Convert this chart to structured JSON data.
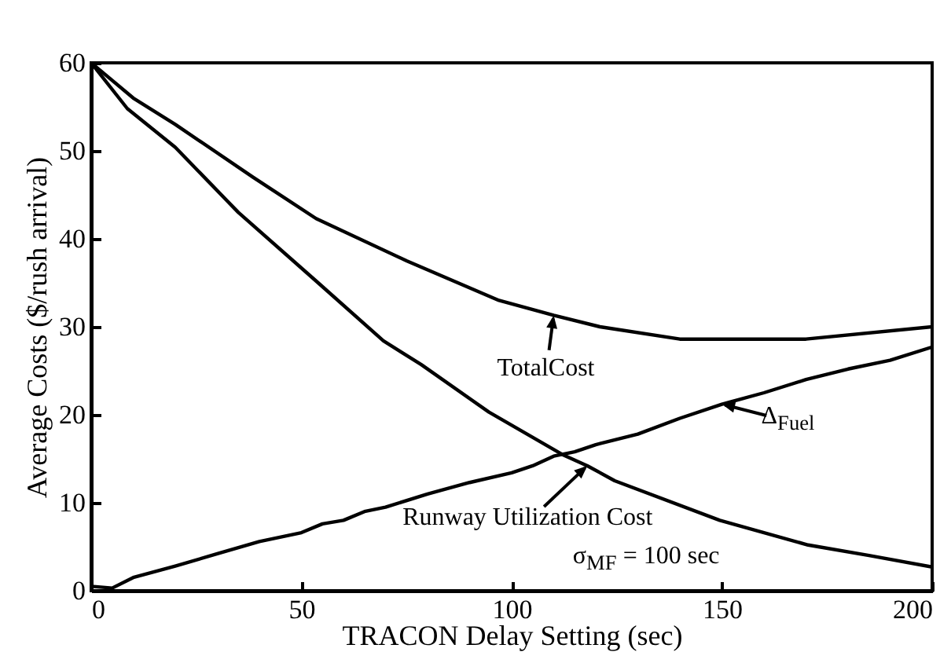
{
  "chart_data": {
    "type": "line",
    "xlabel": "TRACON Delay Setting (sec)",
    "ylabel": "Average Costs ($/rush arrival)",
    "xlim": [
      0,
      200
    ],
    "xticks": [
      0,
      50,
      100,
      150,
      200
    ],
    "ylim": [
      0,
      60
    ],
    "yticks": [
      0,
      10,
      20,
      30,
      40,
      50,
      60
    ],
    "grid": false,
    "marker": "none",
    "line_style": "solid",
    "series": [
      {
        "color": "#000000",
        "x": [
          0,
          10,
          20,
          38.5,
          53.5,
          75,
          97,
          110,
          121,
          140,
          170,
          200
        ],
        "values": [
          60,
          56,
          53,
          47,
          42.3,
          37.5,
          33,
          31.3,
          30,
          28.6,
          28.6,
          30
        ]
      },
      {
        "color": "#000000",
        "x": [
          0,
          8.6,
          20,
          35,
          53.5,
          69.5,
          78.5,
          94.6,
          112,
          118,
          124.5,
          149.5,
          170.5,
          185,
          200
        ],
        "values": [
          60,
          54.8,
          50.4,
          43,
          35.2,
          28.4,
          25.7,
          20.3,
          15.5,
          14.2,
          12.5,
          8,
          5.2,
          4,
          2.7
        ]
      },
      {
        "color": "#000000",
        "x": [
          0,
          5,
          10,
          20,
          30,
          40,
          50,
          55,
          60,
          65,
          70,
          80,
          90,
          100,
          105,
          110,
          115,
          120,
          130,
          140,
          150,
          160,
          170,
          180,
          190,
          200
        ],
        "values": [
          0.5,
          0.3,
          1.5,
          2.8,
          4.2,
          5.6,
          6.6,
          7.6,
          8,
          9,
          9.5,
          11,
          12.3,
          13.4,
          14.2,
          15.3,
          15.8,
          16.6,
          17.8,
          19.6,
          21.2,
          22.5,
          24,
          25.2,
          26.2,
          27.7
        ]
      }
    ],
    "annotations": [
      {
        "text": "TotalCost",
        "x": 110,
        "y": 31.3
      },
      {
        "text": "Runway Utilization Cost",
        "x": 118,
        "y": 14.2
      },
      {
        "text": "Δ$_{Fuel}$",
        "x": 150,
        "y": 21.2
      },
      "σ$_{MF}$ = 100 sec"
    ]
  }
}
